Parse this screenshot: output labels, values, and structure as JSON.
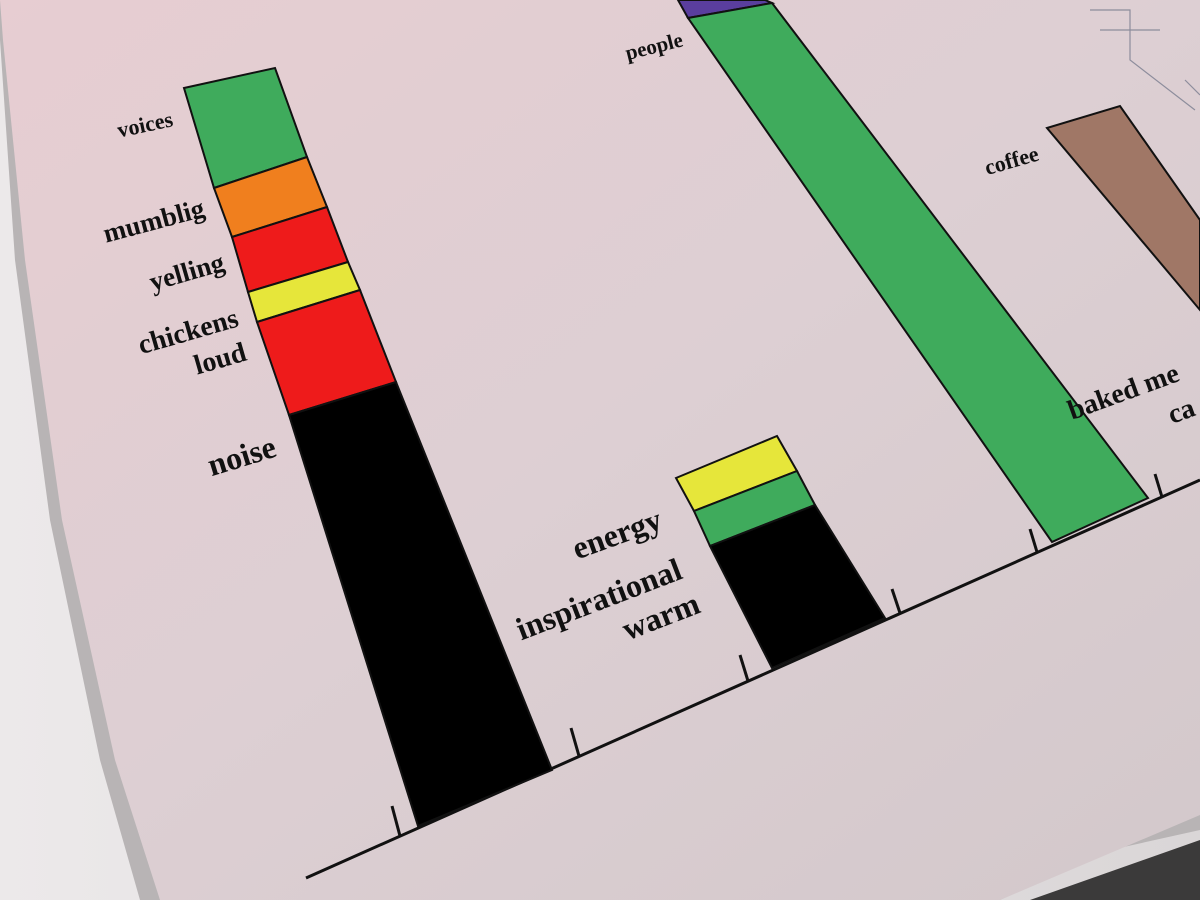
{
  "chart_data": {
    "type": "bar",
    "stacked": true,
    "title": "",
    "xlabel": "",
    "ylabel": "",
    "grid": false,
    "legend": "none",
    "bars": [
      {
        "segments": [
          {
            "label": "noise",
            "color": "#000000",
            "value": 46
          },
          {
            "label": "loud",
            "color": "#ee1b1b",
            "value": 12
          },
          {
            "label": "chickens",
            "color": "#e6e63a",
            "value": 4
          },
          {
            "label": "yelling",
            "color": "#ee1b1b",
            "value": 6
          },
          {
            "label": "mumblig",
            "color": "#f07f1e",
            "value": 6
          },
          {
            "label": "voices",
            "color": "#3fab5c",
            "value": 10
          }
        ]
      },
      {
        "segments": [
          {
            "label": "warm",
            "color": "#000000",
            "value": 18
          },
          {
            "label": "inspirational",
            "color": "#3fab5c",
            "value": 4
          },
          {
            "label": "energy",
            "color": "#e6e63a",
            "value": 5
          }
        ]
      },
      {
        "segments": [
          {
            "label": "people",
            "color": "#3fab5c",
            "value": 66
          },
          {
            "label": "",
            "color": "#5a3e9e",
            "value": 3
          }
        ]
      },
      {
        "segments": [
          {
            "label": "coffee",
            "color": "#a07766",
            "value": 30
          }
        ]
      }
    ],
    "cutoff_labels": [
      "baked me",
      "ca"
    ]
  },
  "icons": {
    "photo": "printed-chart-photo-icon"
  }
}
